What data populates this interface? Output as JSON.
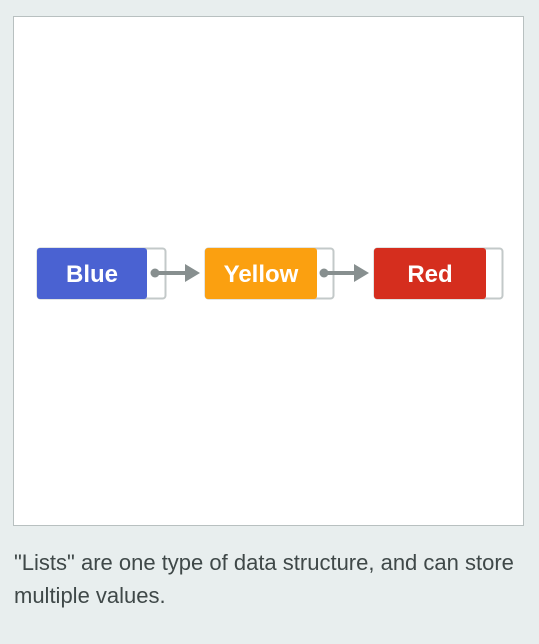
{
  "diagram": {
    "nodes": [
      {
        "label": "Blue",
        "color": "#4a62d2"
      },
      {
        "label": "Yellow",
        "color": "#fba010"
      },
      {
        "label": "Red",
        "color": "#d52e1e"
      }
    ],
    "pointer_color": "#878f8f",
    "slot_border_color": "#c3c9c9"
  },
  "caption": "\"Lists\" are one type of data structure, and can store multiple values."
}
